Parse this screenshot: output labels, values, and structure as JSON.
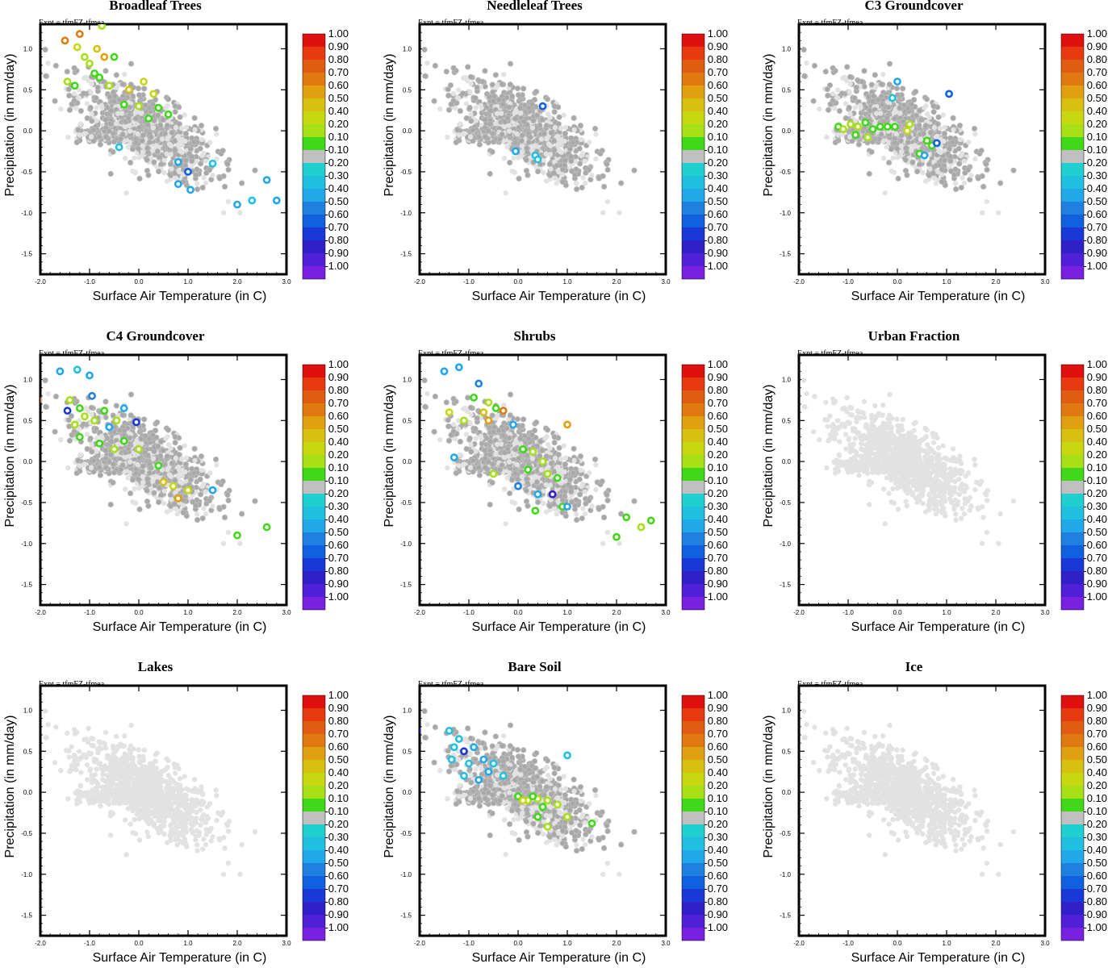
{
  "colorbar": {
    "labels": [
      "1.00",
      "0.90",
      "0.80",
      "0.70",
      "0.60",
      "0.50",
      "0.40",
      "0.20",
      "0.10",
      "-0.10",
      "-0.20",
      "-0.30",
      "-0.40",
      "-0.50",
      "-0.60",
      "-0.70",
      "-0.80",
      "-0.90",
      "-1.00"
    ],
    "colors": [
      "#e01010",
      "#e83a10",
      "#e05c10",
      "#e07a10",
      "#e0a010",
      "#d8c010",
      "#c8d810",
      "#a8e018",
      "#40d818",
      "#c0c0c0",
      "#20d0d0",
      "#20c0e0",
      "#20a8e8",
      "#2080e0",
      "#1060e0",
      "#1838d8",
      "#3020c8",
      "#5020d8",
      "#7a20e0"
    ]
  },
  "chart_data": [
    {
      "type": "scatter",
      "title": "Broadleaf Trees",
      "annotation": "Expt = tfmFZ-tfmea",
      "xlabel": "Surface Air Temperature (in C)",
      "ylabel": "Precipitation (in mm/day)",
      "xlim": [
        -2.0,
        3.0
      ],
      "ylim": [
        -1.75,
        1.3
      ],
      "xticks": [
        "-2.0",
        "-1.0",
        "0.0",
        "1.0",
        "2.0",
        "3.0"
      ],
      "yticks": [
        "1.0",
        "0.5",
        "0.0",
        "-0.5",
        "-1.0",
        "-1.5"
      ],
      "highlight": [
        [
          -1.5,
          1.1,
          0.75
        ],
        [
          -1.2,
          1.18,
          0.7
        ],
        [
          -1.25,
          1.02,
          0.45
        ],
        [
          -0.75,
          1.28,
          0.35
        ],
        [
          -0.85,
          1.0,
          0.55
        ],
        [
          -0.7,
          0.9,
          0.6
        ],
        [
          -1.1,
          0.9,
          0.3
        ],
        [
          -1.0,
          0.82,
          0.25
        ],
        [
          -0.5,
          0.9,
          0.12
        ],
        [
          -1.45,
          0.6,
          0.3
        ],
        [
          -1.3,
          0.55,
          0.15
        ],
        [
          -0.9,
          0.7,
          0.15
        ],
        [
          -0.6,
          0.55,
          0.2
        ],
        [
          -0.2,
          0.5,
          0.5
        ],
        [
          0.1,
          0.6,
          0.45
        ],
        [
          0.3,
          0.45,
          0.4
        ],
        [
          -0.3,
          0.32,
          0.15
        ],
        [
          0.0,
          0.3,
          0.25
        ],
        [
          0.4,
          0.28,
          0.12
        ],
        [
          0.6,
          0.2,
          0.15
        ],
        [
          -0.8,
          0.65,
          0.12
        ],
        [
          0.2,
          0.15,
          0.12
        ],
        [
          -0.4,
          -0.2,
          -0.25
        ],
        [
          0.8,
          -0.38,
          -0.3
        ],
        [
          1.0,
          -0.5,
          -0.5
        ],
        [
          1.5,
          -0.4,
          -0.25
        ],
        [
          2.0,
          -0.9,
          -0.3
        ],
        [
          2.3,
          -0.85,
          -0.25
        ],
        [
          2.6,
          -0.6,
          -0.3
        ],
        [
          2.8,
          -0.85,
          -0.3
        ],
        [
          0.8,
          -0.65,
          -0.35
        ],
        [
          1.05,
          -0.72,
          -0.3
        ]
      ]
    },
    {
      "type": "scatter",
      "title": "Needleleaf Trees",
      "annotation": "Expt = tfmFZ-tfmea",
      "xlabel": "Surface Air Temperature (in C)",
      "ylabel": "Precipitation (in mm/day)",
      "xlim": [
        -2.0,
        3.0
      ],
      "ylim": [
        -1.75,
        1.3
      ],
      "xticks": [
        "-2.0",
        "-1.0",
        "0.0",
        "1.0",
        "2.0",
        "3.0"
      ],
      "yticks": [
        "1.0",
        "0.5",
        "0.0",
        "-0.5",
        "-1.0",
        "-1.5"
      ],
      "highlight": [
        [
          -0.05,
          -0.25,
          -0.3
        ],
        [
          0.35,
          -0.3,
          -0.25
        ],
        [
          0.5,
          0.3,
          -0.5
        ],
        [
          0.4,
          -0.35,
          -0.2
        ]
      ]
    },
    {
      "type": "scatter",
      "title": "C3 Groundcover",
      "annotation": "Expt = tfmFZ-tfmea",
      "xlabel": "Surface Air Temperature (in C)",
      "ylabel": "Precipitation (in mm/day)",
      "xlim": [
        -2.0,
        3.0
      ],
      "ylim": [
        -1.75,
        1.3
      ],
      "xticks": [
        "-2.0",
        "-1.0",
        "0.0",
        "1.0",
        "2.0",
        "3.0"
      ],
      "yticks": [
        "1.0",
        "0.5",
        "0.0",
        "-0.5",
        "-1.0",
        "-1.5"
      ],
      "highlight": [
        [
          -1.2,
          0.05,
          0.15
        ],
        [
          -1.1,
          0.02,
          0.2
        ],
        [
          -0.95,
          0.08,
          0.25
        ],
        [
          -0.8,
          0.05,
          0.2
        ],
        [
          -0.65,
          0.1,
          0.15
        ],
        [
          -0.5,
          0.02,
          0.15
        ],
        [
          -0.35,
          0.05,
          0.12
        ],
        [
          -0.2,
          0.05,
          0.15
        ],
        [
          -0.05,
          0.05,
          0.12
        ],
        [
          0.2,
          0.0,
          0.45
        ],
        [
          0.25,
          0.08,
          0.3
        ],
        [
          -0.6,
          -0.08,
          0.2
        ],
        [
          -0.85,
          -0.05,
          0.12
        ],
        [
          0.6,
          -0.12,
          0.15
        ],
        [
          0.7,
          -0.18,
          0.15
        ],
        [
          0.45,
          -0.28,
          0.12
        ],
        [
          0.0,
          0.6,
          -0.3
        ],
        [
          -0.1,
          0.4,
          -0.25
        ],
        [
          1.05,
          0.45,
          -0.5
        ],
        [
          0.8,
          -0.15,
          -0.5
        ],
        [
          0.55,
          -0.3,
          -0.3
        ]
      ]
    },
    {
      "type": "scatter",
      "title": "C4 Groundcover",
      "annotation": "Expt = tfmFZ-tfmea",
      "xlabel": "Surface Air Temperature (in C)",
      "ylabel": "Precipitation (in mm/day)",
      "xlim": [
        -2.0,
        3.0
      ],
      "ylim": [
        -1.75,
        1.3
      ],
      "xticks": [
        "-2.0",
        "-1.0",
        "0.0",
        "1.0",
        "2.0",
        "3.0"
      ],
      "yticks": [
        "1.0",
        "0.5",
        "0.0",
        "-0.5",
        "-1.0",
        "-1.5"
      ],
      "highlight": [
        [
          -2.05,
          0.75,
          0.7
        ],
        [
          -1.6,
          1.1,
          -0.3
        ],
        [
          -1.25,
          1.12,
          -0.25
        ],
        [
          -1.0,
          1.05,
          -0.35
        ],
        [
          -1.4,
          0.75,
          0.2
        ],
        [
          -1.45,
          0.62,
          -0.6
        ],
        [
          -1.2,
          0.65,
          0.15
        ],
        [
          -1.3,
          0.45,
          0.2
        ],
        [
          -1.1,
          0.55,
          0.35
        ],
        [
          -0.9,
          0.5,
          0.25
        ],
        [
          -0.7,
          0.62,
          0.12
        ],
        [
          -0.6,
          0.42,
          -0.3
        ],
        [
          -0.45,
          0.5,
          0.2
        ],
        [
          -0.05,
          0.48,
          -0.6
        ],
        [
          -1.2,
          0.3,
          0.15
        ],
        [
          -0.8,
          0.22,
          0.15
        ],
        [
          -0.5,
          0.15,
          0.2
        ],
        [
          -0.3,
          0.25,
          0.15
        ],
        [
          0.0,
          0.15,
          0.2
        ],
        [
          0.4,
          -0.05,
          0.12
        ],
        [
          0.5,
          -0.25,
          0.5
        ],
        [
          0.7,
          -0.3,
          0.45
        ],
        [
          0.8,
          -0.45,
          0.6
        ],
        [
          1.0,
          -0.35,
          0.4
        ],
        [
          1.5,
          -0.35,
          -0.3
        ],
        [
          2.0,
          -0.9,
          0.15
        ],
        [
          2.6,
          -0.8,
          0.15
        ],
        [
          -0.95,
          0.8,
          -0.4
        ],
        [
          -0.3,
          0.65,
          -0.3
        ]
      ]
    },
    {
      "type": "scatter",
      "title": "Shrubs",
      "annotation": "Expt = tfmFZ-tfmea",
      "xlabel": "Surface Air Temperature (in C)",
      "ylabel": "Precipitation (in mm/day)",
      "xlim": [
        -2.0,
        3.0
      ],
      "ylim": [
        -1.75,
        1.3
      ],
      "xticks": [
        "-2.0",
        "-1.0",
        "0.0",
        "1.0",
        "2.0",
        "3.0"
      ],
      "yticks": [
        "1.0",
        "0.5",
        "0.0",
        "-0.5",
        "-1.0",
        "-1.5"
      ],
      "highlight": [
        [
          -1.5,
          1.1,
          -0.3
        ],
        [
          -1.2,
          1.15,
          -0.35
        ],
        [
          -0.8,
          0.95,
          -0.4
        ],
        [
          -1.4,
          0.6,
          0.45
        ],
        [
          -1.1,
          0.5,
          0.2
        ],
        [
          -0.9,
          0.78,
          0.15
        ],
        [
          -0.6,
          0.72,
          0.3
        ],
        [
          -0.45,
          0.65,
          0.15
        ],
        [
          -0.7,
          0.6,
          0.55
        ],
        [
          -0.6,
          0.5,
          0.65
        ],
        [
          -0.3,
          0.62,
          0.7
        ],
        [
          1.0,
          0.45,
          0.65
        ],
        [
          -0.1,
          0.45,
          -0.3
        ],
        [
          -1.3,
          0.05,
          -0.3
        ],
        [
          -0.5,
          -0.15,
          0.35
        ],
        [
          0.1,
          0.15,
          0.15
        ],
        [
          0.3,
          0.12,
          0.2
        ],
        [
          0.5,
          0.0,
          0.25
        ],
        [
          0.2,
          -0.1,
          0.15
        ],
        [
          0.6,
          -0.15,
          0.3
        ],
        [
          0.8,
          -0.2,
          0.15
        ],
        [
          0.0,
          -0.3,
          -0.4
        ],
        [
          0.4,
          -0.4,
          -0.3
        ],
        [
          0.7,
          -0.4,
          -0.7
        ],
        [
          0.9,
          -0.55,
          0.15
        ],
        [
          0.35,
          -0.6,
          0.15
        ],
        [
          1.0,
          -0.55,
          -0.3
        ],
        [
          2.0,
          -0.92,
          0.15
        ],
        [
          2.2,
          -0.68,
          0.15
        ],
        [
          2.5,
          -0.8,
          0.2
        ],
        [
          2.7,
          -0.72,
          0.15
        ]
      ]
    },
    {
      "type": "scatter",
      "title": "Urban Fraction",
      "annotation": "Expt = tfmFZ-tfmea",
      "xlabel": "Surface Air Temperature (in C)",
      "ylabel": "Precipitation (in mm/day)",
      "xlim": [
        -2.0,
        3.0
      ],
      "ylim": [
        -1.75,
        1.3
      ],
      "xticks": [
        "-2.0",
        "-1.0",
        "0.0",
        "1.0",
        "2.0",
        "3.0"
      ],
      "yticks": [
        "1.0",
        "0.5",
        "0.0",
        "-0.5",
        "-1.0",
        "-1.5"
      ],
      "highlight": []
    },
    {
      "type": "scatter",
      "title": "Lakes",
      "annotation": "Expt = tfmFZ-tfmea",
      "xlabel": "Surface Air Temperature (in C)",
      "ylabel": "Precipitation (in mm/day)",
      "xlim": [
        -2.0,
        3.0
      ],
      "ylim": [
        -1.75,
        1.3
      ],
      "xticks": [
        "-2.0",
        "-1.0",
        "0.0",
        "1.0",
        "2.0",
        "3.0"
      ],
      "yticks": [
        "1.0",
        "0.5",
        "0.0",
        "-0.5",
        "-1.0",
        "-1.5"
      ],
      "highlight": []
    },
    {
      "type": "scatter",
      "title": "Bare Soil",
      "annotation": "Expt = tfmFZ-tfmea",
      "xlabel": "Surface Air Temperature (in C)",
      "ylabel": "Precipitation (in mm/day)",
      "xlim": [
        -2.0,
        3.0
      ],
      "ylim": [
        -1.75,
        1.3
      ],
      "xticks": [
        "-2.0",
        "-1.0",
        "0.0",
        "1.0",
        "2.0",
        "3.0"
      ],
      "yticks": [
        "1.0",
        "0.5",
        "0.0",
        "-0.5",
        "-1.0",
        "-1.5"
      ],
      "highlight": [
        [
          -2.05,
          0.75,
          -0.7
        ],
        [
          -1.4,
          0.75,
          -0.25
        ],
        [
          -1.2,
          0.65,
          -0.2
        ],
        [
          -1.3,
          0.55,
          -0.2
        ],
        [
          -1.1,
          0.5,
          -0.6
        ],
        [
          -0.9,
          0.55,
          -0.3
        ],
        [
          -1.35,
          0.4,
          -0.2
        ],
        [
          -1.0,
          0.35,
          -0.25
        ],
        [
          -0.7,
          0.4,
          -0.3
        ],
        [
          -0.5,
          0.35,
          -0.2
        ],
        [
          -1.1,
          0.2,
          -0.25
        ],
        [
          -0.8,
          0.15,
          -0.3
        ],
        [
          -0.3,
          0.2,
          -0.2
        ],
        [
          -0.6,
          0.25,
          -0.35
        ],
        [
          1.0,
          0.45,
          -0.25
        ],
        [
          0.0,
          -0.05,
          0.12
        ],
        [
          0.2,
          -0.1,
          0.2
        ],
        [
          0.4,
          -0.08,
          0.25
        ],
        [
          0.6,
          -0.1,
          0.3
        ],
        [
          0.3,
          -0.05,
          0.15
        ],
        [
          0.5,
          -0.18,
          0.15
        ],
        [
          0.8,
          -0.15,
          0.2
        ],
        [
          0.4,
          -0.3,
          0.12
        ],
        [
          0.6,
          -0.42,
          0.2
        ],
        [
          1.0,
          -0.3,
          0.25
        ],
        [
          1.5,
          -0.38,
          0.15
        ],
        [
          0.1,
          -0.1,
          0.45
        ]
      ]
    },
    {
      "type": "scatter",
      "title": "Ice",
      "annotation": "Expt = tfmFZ-tfmea",
      "xlabel": "Surface Air Temperature (in C)",
      "ylabel": "Precipitation (in mm/day)",
      "xlim": [
        -2.0,
        3.0
      ],
      "ylim": [
        -1.75,
        1.3
      ],
      "xticks": [
        "-2.0",
        "-1.0",
        "0.0",
        "1.0",
        "2.0",
        "3.0"
      ],
      "yticks": [
        "1.0",
        "0.5",
        "0.0",
        "-0.5",
        "-1.0",
        "-1.5"
      ],
      "highlight": []
    }
  ]
}
